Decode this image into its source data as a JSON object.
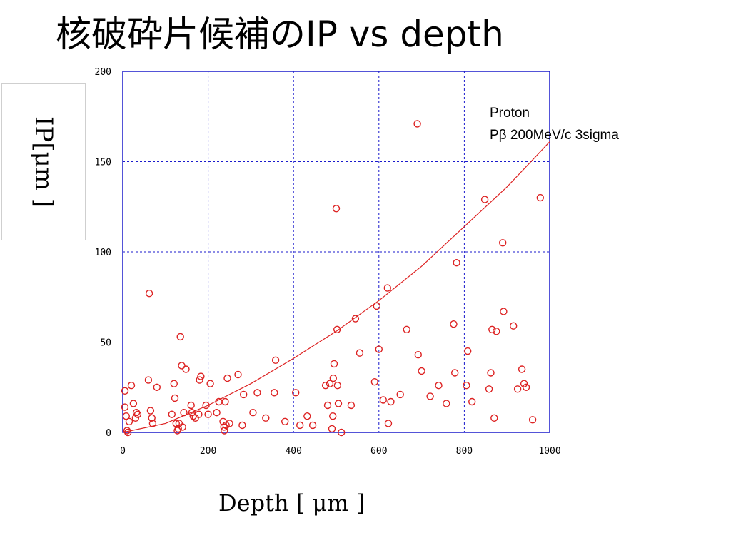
{
  "slide": {
    "title": "核破砕片候補のIP vs depth"
  },
  "chart_data": {
    "type": "scatter",
    "xlabel": "Depth [ μm ]",
    "ylabel": "IP[μm ]",
    "xlim": [
      0,
      1000
    ],
    "ylim": [
      0,
      200
    ],
    "xticks": [
      "0",
      "200",
      "400",
      "600",
      "800",
      "1000"
    ],
    "yticks": [
      "0",
      "50",
      "100",
      "150",
      "200"
    ],
    "grid": true,
    "annotation": [
      "Proton",
      "Pβ 200MeV/c 3sigma"
    ],
    "colors": {
      "frame": "#1a1acc",
      "grid": "#1a1acc",
      "points": "#dd2222",
      "curve": "#dd2222"
    },
    "series": [
      {
        "type": "scatter",
        "points": [
          [
            5,
            23
          ],
          [
            5,
            14
          ],
          [
            8,
            9
          ],
          [
            10,
            1
          ],
          [
            12,
            0
          ],
          [
            15,
            6
          ],
          [
            20,
            26
          ],
          [
            25,
            16
          ],
          [
            30,
            8
          ],
          [
            32,
            11
          ],
          [
            35,
            10
          ],
          [
            60,
            29
          ],
          [
            62,
            77
          ],
          [
            65,
            12
          ],
          [
            68,
            8
          ],
          [
            70,
            5
          ],
          [
            80,
            25
          ],
          [
            115,
            10
          ],
          [
            120,
            27
          ],
          [
            122,
            19
          ],
          [
            125,
            5
          ],
          [
            128,
            1
          ],
          [
            130,
            2
          ],
          [
            132,
            5
          ],
          [
            135,
            53
          ],
          [
            138,
            37
          ],
          [
            140,
            3
          ],
          [
            143,
            11
          ],
          [
            148,
            35
          ],
          [
            160,
            15
          ],
          [
            162,
            11
          ],
          [
            165,
            9
          ],
          [
            170,
            8
          ],
          [
            178,
            10
          ],
          [
            180,
            29
          ],
          [
            183,
            31
          ],
          [
            195,
            15
          ],
          [
            200,
            10
          ],
          [
            205,
            27
          ],
          [
            220,
            11
          ],
          [
            225,
            17
          ],
          [
            235,
            6
          ],
          [
            237,
            3
          ],
          [
            238,
            1
          ],
          [
            240,
            17
          ],
          [
            242,
            4
          ],
          [
            245,
            30
          ],
          [
            250,
            5
          ],
          [
            270,
            32
          ],
          [
            280,
            4
          ],
          [
            283,
            21
          ],
          [
            305,
            11
          ],
          [
            315,
            22
          ],
          [
            335,
            8
          ],
          [
            355,
            22
          ],
          [
            358,
            40
          ],
          [
            380,
            6
          ],
          [
            405,
            22
          ],
          [
            415,
            4
          ],
          [
            432,
            9
          ],
          [
            445,
            4
          ],
          [
            475,
            26
          ],
          [
            480,
            15
          ],
          [
            485,
            27
          ],
          [
            490,
            2
          ],
          [
            492,
            9
          ],
          [
            493,
            30
          ],
          [
            495,
            38
          ],
          [
            500,
            124
          ],
          [
            502,
            57
          ],
          [
            503,
            26
          ],
          [
            505,
            16
          ],
          [
            512,
            0
          ],
          [
            535,
            15
          ],
          [
            545,
            63
          ],
          [
            555,
            44
          ],
          [
            590,
            28
          ],
          [
            595,
            70
          ],
          [
            600,
            46
          ],
          [
            610,
            18
          ],
          [
            620,
            80
          ],
          [
            622,
            5
          ],
          [
            628,
            17
          ],
          [
            650,
            21
          ],
          [
            665,
            57
          ],
          [
            690,
            171
          ],
          [
            692,
            43
          ],
          [
            700,
            34
          ],
          [
            720,
            20
          ],
          [
            740,
            26
          ],
          [
            758,
            16
          ],
          [
            775,
            60
          ],
          [
            778,
            33
          ],
          [
            782,
            94
          ],
          [
            805,
            26
          ],
          [
            808,
            45
          ],
          [
            818,
            17
          ],
          [
            848,
            129
          ],
          [
            858,
            24
          ],
          [
            862,
            33
          ],
          [
            865,
            57
          ],
          [
            870,
            8
          ],
          [
            875,
            56
          ],
          [
            890,
            105
          ],
          [
            892,
            67
          ],
          [
            915,
            59
          ],
          [
            925,
            24
          ],
          [
            935,
            35
          ],
          [
            940,
            27
          ],
          [
            945,
            25
          ],
          [
            960,
            7
          ],
          [
            978,
            130
          ]
        ]
      },
      {
        "type": "line",
        "points": [
          [
            0,
            0
          ],
          [
            100,
            5
          ],
          [
            200,
            15
          ],
          [
            300,
            27
          ],
          [
            400,
            41
          ],
          [
            500,
            56
          ],
          [
            600,
            73
          ],
          [
            700,
            92
          ],
          [
            800,
            114
          ],
          [
            900,
            136
          ],
          [
            1000,
            161
          ]
        ]
      }
    ]
  }
}
